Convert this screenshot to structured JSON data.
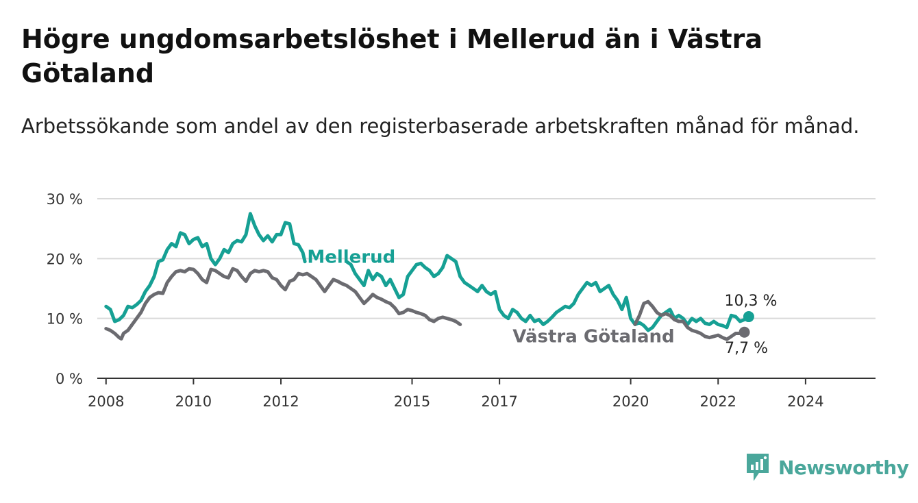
{
  "header": {
    "title": "Högre ungdomsarbetslöshet i Mellerud än i Västra Götaland",
    "subtitle": "Arbetssökande som andel av den registerbaserade arbetskraften månad för månad."
  },
  "brand": {
    "name": "Newsworthy",
    "icon": "newsworthy-chart-logo-icon",
    "color": "#4aa79b"
  },
  "chart_data": {
    "type": "line",
    "title": "Högre ungdomsarbetslöshet i Mellerud än i Västra Götaland",
    "subtitle": "Arbetssökande som andel av den registerbaserade arbetskraften månad för månad.",
    "x_unit": "year",
    "xlim": [
      2007.8,
      2025.6
    ],
    "ylim": [
      0,
      30
    ],
    "y_ticks": [
      {
        "value": 0,
        "label": "0 %"
      },
      {
        "value": 10,
        "label": "10 %"
      },
      {
        "value": 20,
        "label": "20 %"
      },
      {
        "value": 30,
        "label": "30 %"
      }
    ],
    "x_ticks": [
      {
        "value": 2008,
        "label": "2008"
      },
      {
        "value": 2010,
        "label": "2010"
      },
      {
        "value": 2012,
        "label": "2012"
      },
      {
        "value": 2015,
        "label": "2015"
      },
      {
        "value": 2017,
        "label": "2017"
      },
      {
        "value": 2020,
        "label": "2020"
      },
      {
        "value": 2022,
        "label": "2022"
      },
      {
        "value": 2024,
        "label": "2024"
      }
    ],
    "grid": true,
    "series": [
      {
        "name": "Mellerud",
        "color": "#16a094",
        "end_label": "10,3 %",
        "gaps": [
          [
            2012.6,
            2013.5
          ]
        ],
        "points": [
          [
            2008.0,
            12.0
          ],
          [
            2008.1,
            11.5
          ],
          [
            2008.2,
            9.5
          ],
          [
            2008.3,
            9.8
          ],
          [
            2008.4,
            10.5
          ],
          [
            2008.5,
            12.0
          ],
          [
            2008.6,
            11.8
          ],
          [
            2008.7,
            12.3
          ],
          [
            2008.8,
            13.0
          ],
          [
            2008.9,
            14.5
          ],
          [
            2009.0,
            15.5
          ],
          [
            2009.1,
            17.0
          ],
          [
            2009.2,
            19.5
          ],
          [
            2009.3,
            19.8
          ],
          [
            2009.4,
            21.5
          ],
          [
            2009.5,
            22.5
          ],
          [
            2009.6,
            22.0
          ],
          [
            2009.7,
            24.3
          ],
          [
            2009.8,
            24.0
          ],
          [
            2009.9,
            22.5
          ],
          [
            2010.0,
            23.2
          ],
          [
            2010.1,
            23.5
          ],
          [
            2010.2,
            22.0
          ],
          [
            2010.3,
            22.5
          ],
          [
            2010.4,
            20.0
          ],
          [
            2010.5,
            19.0
          ],
          [
            2010.6,
            20.0
          ],
          [
            2010.7,
            21.5
          ],
          [
            2010.8,
            21.0
          ],
          [
            2010.9,
            22.5
          ],
          [
            2011.0,
            23.0
          ],
          [
            2011.1,
            22.8
          ],
          [
            2011.2,
            24.0
          ],
          [
            2011.3,
            27.5
          ],
          [
            2011.4,
            25.5
          ],
          [
            2011.5,
            24.0
          ],
          [
            2011.6,
            23.0
          ],
          [
            2011.7,
            23.8
          ],
          [
            2011.8,
            22.8
          ],
          [
            2011.9,
            24.0
          ],
          [
            2012.0,
            24.0
          ],
          [
            2012.1,
            26.0
          ],
          [
            2012.2,
            25.8
          ],
          [
            2012.3,
            22.5
          ],
          [
            2012.4,
            22.3
          ],
          [
            2012.5,
            21.0
          ],
          [
            2012.55,
            19.5
          ],
          [
            2013.5,
            19.5
          ],
          [
            2013.6,
            19.0
          ],
          [
            2013.7,
            17.5
          ],
          [
            2013.8,
            16.5
          ],
          [
            2013.9,
            15.5
          ],
          [
            2014.0,
            18.0
          ],
          [
            2014.1,
            16.5
          ],
          [
            2014.2,
            17.5
          ],
          [
            2014.3,
            17.0
          ],
          [
            2014.4,
            15.5
          ],
          [
            2014.5,
            16.5
          ],
          [
            2014.6,
            15.0
          ],
          [
            2014.7,
            13.5
          ],
          [
            2014.8,
            14.0
          ],
          [
            2014.9,
            17.0
          ],
          [
            2015.0,
            18.0
          ],
          [
            2015.1,
            19.0
          ],
          [
            2015.2,
            19.2
          ],
          [
            2015.3,
            18.5
          ],
          [
            2015.4,
            18.0
          ],
          [
            2015.5,
            17.0
          ],
          [
            2015.6,
            17.5
          ],
          [
            2015.7,
            18.5
          ],
          [
            2015.8,
            20.5
          ],
          [
            2015.9,
            20.0
          ],
          [
            2016.0,
            19.5
          ],
          [
            2016.1,
            17.0
          ],
          [
            2016.2,
            16.0
          ],
          [
            2016.3,
            15.5
          ],
          [
            2016.4,
            15.0
          ],
          [
            2016.5,
            14.5
          ],
          [
            2016.6,
            15.5
          ],
          [
            2016.7,
            14.5
          ],
          [
            2016.8,
            14.0
          ],
          [
            2016.9,
            14.5
          ],
          [
            2017.0,
            11.5
          ],
          [
            2017.1,
            10.5
          ],
          [
            2017.2,
            10.0
          ],
          [
            2017.3,
            11.5
          ],
          [
            2017.4,
            11.0
          ],
          [
            2017.5,
            10.0
          ],
          [
            2017.6,
            9.5
          ],
          [
            2017.7,
            10.5
          ],
          [
            2017.8,
            9.5
          ],
          [
            2017.9,
            9.8
          ],
          [
            2018.0,
            9.0
          ],
          [
            2018.1,
            9.5
          ],
          [
            2018.2,
            10.2
          ],
          [
            2018.3,
            11.0
          ],
          [
            2018.4,
            11.5
          ],
          [
            2018.5,
            12.0
          ],
          [
            2018.6,
            11.8
          ],
          [
            2018.7,
            12.5
          ],
          [
            2018.8,
            14.0
          ],
          [
            2018.9,
            15.0
          ],
          [
            2019.0,
            16.0
          ],
          [
            2019.1,
            15.5
          ],
          [
            2019.2,
            16.0
          ],
          [
            2019.3,
            14.5
          ],
          [
            2019.4,
            15.0
          ],
          [
            2019.5,
            15.5
          ],
          [
            2019.6,
            14.0
          ],
          [
            2019.7,
            13.0
          ],
          [
            2019.8,
            11.5
          ],
          [
            2019.9,
            13.5
          ],
          [
            2020.0,
            10.0
          ],
          [
            2020.1,
            9.0
          ],
          [
            2020.2,
            9.3
          ],
          [
            2020.3,
            8.8
          ],
          [
            2020.4,
            8.0
          ],
          [
            2020.5,
            8.5
          ],
          [
            2020.6,
            9.5
          ],
          [
            2020.7,
            10.5
          ],
          [
            2020.8,
            11.0
          ],
          [
            2020.9,
            11.5
          ],
          [
            2021.0,
            10.0
          ],
          [
            2021.1,
            10.5
          ],
          [
            2021.2,
            10.0
          ],
          [
            2021.3,
            9.0
          ],
          [
            2021.4,
            10.0
          ],
          [
            2021.5,
            9.5
          ],
          [
            2021.6,
            10.0
          ],
          [
            2021.7,
            9.2
          ],
          [
            2021.8,
            9.0
          ],
          [
            2021.9,
            9.5
          ],
          [
            2022.0,
            9.0
          ],
          [
            2022.1,
            8.8
          ],
          [
            2022.2,
            8.5
          ],
          [
            2022.3,
            10.5
          ],
          [
            2022.4,
            10.3
          ],
          [
            2022.5,
            9.5
          ],
          [
            2022.6,
            9.8
          ],
          [
            2022.7,
            10.3
          ]
        ]
      },
      {
        "name": "Västra Götaland",
        "color": "#6b6b70",
        "end_label": "7,7 %",
        "gaps": [
          [
            2017.2,
            2019.9
          ]
        ],
        "points": [
          [
            2008.0,
            8.3
          ],
          [
            2008.1,
            8.0
          ],
          [
            2008.2,
            7.5
          ],
          [
            2008.3,
            6.8
          ],
          [
            2008.35,
            6.6
          ],
          [
            2008.4,
            7.5
          ],
          [
            2008.5,
            8.0
          ],
          [
            2008.6,
            9.0
          ],
          [
            2008.7,
            10.0
          ],
          [
            2008.8,
            11.0
          ],
          [
            2008.9,
            12.5
          ],
          [
            2009.0,
            13.5
          ],
          [
            2009.1,
            14.0
          ],
          [
            2009.2,
            14.3
          ],
          [
            2009.3,
            14.2
          ],
          [
            2009.4,
            16.0
          ],
          [
            2009.5,
            17.0
          ],
          [
            2009.6,
            17.8
          ],
          [
            2009.7,
            18.0
          ],
          [
            2009.8,
            17.8
          ],
          [
            2009.9,
            18.3
          ],
          [
            2010.0,
            18.2
          ],
          [
            2010.1,
            17.5
          ],
          [
            2010.2,
            16.5
          ],
          [
            2010.3,
            16.0
          ],
          [
            2010.4,
            18.2
          ],
          [
            2010.5,
            18.0
          ],
          [
            2010.6,
            17.5
          ],
          [
            2010.7,
            17.0
          ],
          [
            2010.8,
            16.8
          ],
          [
            2010.9,
            18.3
          ],
          [
            2011.0,
            18.0
          ],
          [
            2011.1,
            17.0
          ],
          [
            2011.2,
            16.2
          ],
          [
            2011.3,
            17.5
          ],
          [
            2011.4,
            18.0
          ],
          [
            2011.5,
            17.8
          ],
          [
            2011.6,
            18.0
          ],
          [
            2011.7,
            17.8
          ],
          [
            2011.8,
            16.8
          ],
          [
            2011.9,
            16.5
          ],
          [
            2012.0,
            15.5
          ],
          [
            2012.1,
            14.8
          ],
          [
            2012.2,
            16.2
          ],
          [
            2012.3,
            16.5
          ],
          [
            2012.4,
            17.5
          ],
          [
            2012.5,
            17.3
          ],
          [
            2012.6,
            17.5
          ],
          [
            2012.7,
            17.0
          ],
          [
            2012.8,
            16.5
          ],
          [
            2012.9,
            15.5
          ],
          [
            2013.0,
            14.5
          ],
          [
            2013.1,
            15.5
          ],
          [
            2013.2,
            16.5
          ],
          [
            2013.3,
            16.2
          ],
          [
            2013.4,
            15.8
          ],
          [
            2013.5,
            15.5
          ],
          [
            2013.6,
            15.0
          ],
          [
            2013.7,
            14.5
          ],
          [
            2013.8,
            13.5
          ],
          [
            2013.9,
            12.5
          ],
          [
            2014.0,
            13.2
          ],
          [
            2014.1,
            14.0
          ],
          [
            2014.2,
            13.5
          ],
          [
            2014.3,
            13.2
          ],
          [
            2014.4,
            12.8
          ],
          [
            2014.5,
            12.5
          ],
          [
            2014.6,
            11.8
          ],
          [
            2014.7,
            10.8
          ],
          [
            2014.8,
            11.0
          ],
          [
            2014.9,
            11.5
          ],
          [
            2015.0,
            11.3
          ],
          [
            2015.1,
            11.0
          ],
          [
            2015.2,
            10.8
          ],
          [
            2015.3,
            10.5
          ],
          [
            2015.4,
            9.8
          ],
          [
            2015.5,
            9.5
          ],
          [
            2015.6,
            10.0
          ],
          [
            2015.7,
            10.2
          ],
          [
            2015.8,
            10.0
          ],
          [
            2015.9,
            9.8
          ],
          [
            2016.0,
            9.5
          ],
          [
            2016.1,
            9.0
          ],
          [
            2020.1,
            9.0
          ],
          [
            2020.2,
            10.5
          ],
          [
            2020.3,
            12.5
          ],
          [
            2020.4,
            12.8
          ],
          [
            2020.5,
            12.0
          ],
          [
            2020.6,
            11.0
          ],
          [
            2020.7,
            10.5
          ],
          [
            2020.8,
            10.8
          ],
          [
            2020.9,
            10.5
          ],
          [
            2021.0,
            9.8
          ],
          [
            2021.1,
            9.5
          ],
          [
            2021.2,
            9.5
          ],
          [
            2021.3,
            8.5
          ],
          [
            2021.4,
            8.0
          ],
          [
            2021.5,
            7.8
          ],
          [
            2021.6,
            7.5
          ],
          [
            2021.7,
            7.0
          ],
          [
            2021.8,
            6.8
          ],
          [
            2021.9,
            7.0
          ],
          [
            2022.0,
            7.2
          ],
          [
            2022.1,
            6.8
          ],
          [
            2022.2,
            6.5
          ],
          [
            2022.3,
            7.0
          ],
          [
            2022.4,
            7.5
          ],
          [
            2022.5,
            7.5
          ],
          [
            2022.6,
            7.7
          ]
        ]
      }
    ],
    "series_labels": [
      {
        "series": "Mellerud",
        "text": "Mellerud"
      },
      {
        "series": "Västra Götaland",
        "text": "Västra Götaland"
      }
    ]
  }
}
